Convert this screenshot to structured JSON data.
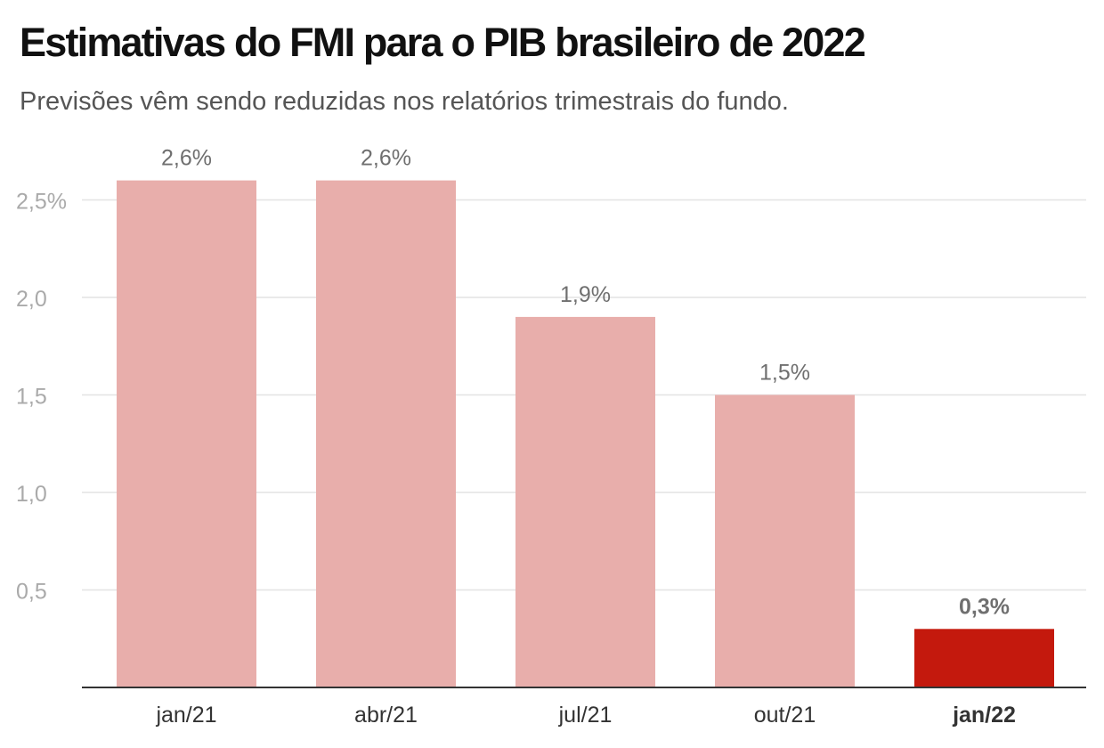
{
  "chart_data": {
    "type": "bar",
    "title": "Estimativas do FMI para o PIB brasileiro de 2022",
    "subtitle": "Previsões vêm sendo reduzidas nos relatórios trimestrais do fundo.",
    "categories": [
      "jan/21",
      "abr/21",
      "jul/21",
      "out/21",
      "jan/22"
    ],
    "values": [
      2.6,
      2.6,
      1.9,
      1.5,
      0.3
    ],
    "value_labels": [
      "2,6%",
      "2,6%",
      "1,9%",
      "1,5%",
      "0,3%"
    ],
    "highlight_index": 4,
    "ylim": [
      0,
      2.5
    ],
    "yticks": [
      0.5,
      1.0,
      1.5,
      2.0,
      2.5
    ],
    "ytick_labels": [
      "0,5",
      "1,0",
      "1,5",
      "2,0",
      "2,5%"
    ],
    "xlabel": "",
    "ylabel": "",
    "grid": true,
    "colors": {
      "bar": "#e8aeab",
      "highlight": "#c4190d",
      "grid": "#e3e3e3",
      "axis": "#333333",
      "tick_text": "#aaaaaa",
      "label_text": "#6f6f6f",
      "category_text": "#333333"
    }
  }
}
